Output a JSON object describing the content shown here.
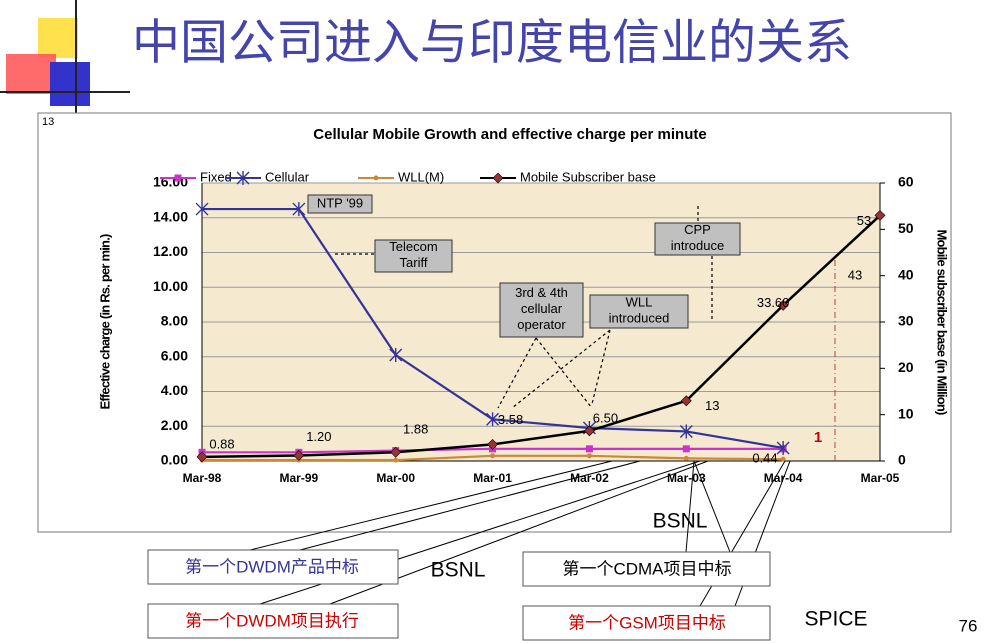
{
  "slide": {
    "title": "中国公司进入与印度电信业的关系",
    "slide_label": "13",
    "page_number": "76",
    "callouts": [
      {
        "text": "第一个DWDM产品中标",
        "color": "#333399"
      },
      {
        "text": "第一个DWDM项目执行",
        "color": "#cc0000"
      },
      {
        "text": "第一个CDMA项目中标",
        "color": "#000000"
      },
      {
        "text": "第一个GSM项目中标",
        "color": "#cc0000"
      }
    ],
    "labels": [
      "BSNL",
      "BSNL",
      "SPICE"
    ]
  },
  "chart_data": {
    "type": "line",
    "title": "Cellular Mobile Growth and effective charge per minute",
    "y_label": "Effective charge (in Rs. per min.)",
    "y2_label": "Mobile subscriber base (in Million)",
    "categories": [
      "Mar-98",
      "Mar-99",
      "Mar-00",
      "Mar-01",
      "Mar-02",
      "Mar-03",
      "Mar-04",
      "Mar-05"
    ],
    "series": [
      {
        "name": "Fixed",
        "color": "#cc33cc",
        "marker": "square",
        "axis": "y",
        "values": [
          0.5,
          0.5,
          0.6,
          0.7,
          0.7,
          0.7,
          0.7,
          null
        ]
      },
      {
        "name": "Cellular",
        "color": "#333399",
        "marker": "asterisk",
        "axis": "y",
        "values": [
          14.5,
          14.5,
          6.1,
          2.4,
          1.9,
          1.7,
          0.75,
          null
        ]
      },
      {
        "name": "WLL(M)",
        "color": "#cc8833",
        "marker": "circle",
        "axis": "y",
        "values": [
          0.05,
          0.05,
          0.05,
          0.3,
          0.3,
          0.15,
          0.1,
          null
        ]
      },
      {
        "name": "Mobile Subscriber base",
        "color": "#000000",
        "marker_color": "#993333",
        "marker": "diamond",
        "axis": "y2",
        "values": [
          0.88,
          1.2,
          1.88,
          3.58,
          6.5,
          13,
          33.6,
          53
        ],
        "value_labels": [
          "0.88",
          "1.20",
          "1.88",
          "3.58",
          "6.50",
          "13",
          "33.60",
          "53"
        ]
      }
    ],
    "ylim": [
      0,
      16
    ],
    "yticks": [
      {
        "value": 0,
        "label": "0.00"
      },
      {
        "value": 2,
        "label": "2.00"
      },
      {
        "value": 4,
        "label": "4.00"
      },
      {
        "value": 6,
        "label": "6.00"
      },
      {
        "value": 8,
        "label": "8.00"
      },
      {
        "value": 10,
        "label": "10.00"
      },
      {
        "value": 12,
        "label": "12.00"
      },
      {
        "value": 14,
        "label": "14.00"
      },
      {
        "value": 16,
        "label": "16.00"
      }
    ],
    "y2lim": [
      0,
      60
    ],
    "y2ticks": [
      0,
      10,
      20,
      30,
      40,
      50,
      60
    ],
    "grid": true,
    "legend": "top",
    "plot_background": "#f5ead0",
    "annotations": [
      "NTP '99",
      "Telecom Tariff",
      "3rd & 4th cellular operator",
      "WLL introduced",
      "CPP introduce",
      "0.44",
      "1",
      "43"
    ]
  }
}
